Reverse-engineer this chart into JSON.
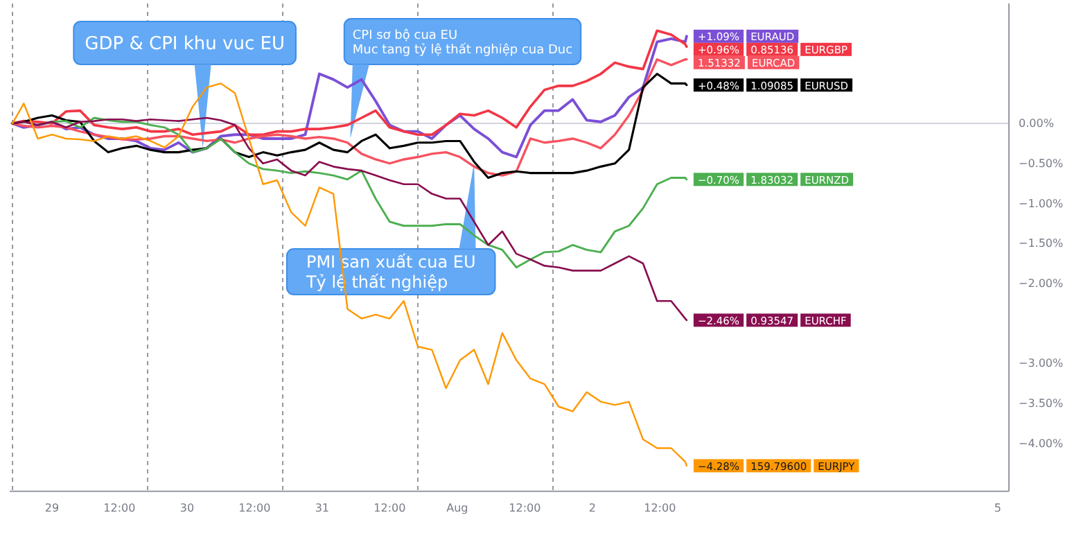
{
  "chart_data": {
    "type": "line",
    "x": [
      "--07-28T17:00",
      "--07-28T19:00",
      "--07-28T21:30",
      "--07-29T00:00",
      "--07-29T02:30",
      "--07-29T05:00",
      "--07-29T07:30",
      "--07-29T10:00",
      "--07-29T12:30",
      "--07-29T15:00",
      "--07-29T17:30",
      "--07-29T20:00",
      "--07-29T22:30",
      "--07-30T01:00",
      "--07-30T03:30",
      "--07-30T06:00",
      "--07-30T08:30",
      "--07-30T11:00",
      "--07-30T13:30",
      "--07-30T16:00",
      "--07-30T18:30",
      "--07-30T21:00",
      "--07-30T23:30",
      "--07-31T02:00",
      "--07-31T04:30",
      "--07-31T07:00",
      "--07-31T09:30",
      "--07-31T12:00",
      "--07-31T14:30",
      "--07-31T17:00",
      "--07-31T19:30",
      "--07-31T22:00",
      "--08-01T00:30",
      "--08-01T03:00",
      "--08-01T05:30",
      "--08-01T08:00",
      "--08-01T10:30",
      "--08-01T13:00",
      "--08-01T15:30",
      "--08-01T18:00",
      "--08-01T20:30",
      "--08-01T23:00",
      "--08-02T01:30",
      "--08-02T04:00",
      "--08-02T06:30",
      "--08-02T09:00",
      "--08-02T11:30",
      "--08-02T14:00",
      "--08-02T16:30",
      "--08-02T16:45"
    ],
    "xlim": [
      "--07-28T16:30",
      "--08-05T02:00"
    ],
    "xticks": [
      {
        "value": "--07-29",
        "label": "29"
      },
      {
        "value": "--07-29T12:00",
        "label": "12:00"
      },
      {
        "value": "--07-30",
        "label": "30"
      },
      {
        "value": "--07-30T12:00",
        "label": "12:00"
      },
      {
        "value": "--07-31",
        "label": "31"
      },
      {
        "value": "--07-31T12:00",
        "label": "12:00"
      },
      {
        "value": "--08-01",
        "label": "Aug"
      },
      {
        "value": "--08-01T12:00",
        "label": "12:00"
      },
      {
        "value": "--08-02",
        "label": "2"
      },
      {
        "value": "--08-02T12:00",
        "label": "12:00"
      },
      {
        "value": "--08-05",
        "label": "5"
      }
    ],
    "ylim": [
      -4.6,
      1.5
    ],
    "legend": "right",
    "yticks": [
      {
        "value": 0,
        "label": "0.00%"
      },
      {
        "value": -0.5,
        "label": "−0.50%"
      },
      {
        "value": -1,
        "label": "−1.00%"
      },
      {
        "value": -1.5,
        "label": "−1.50%"
      },
      {
        "value": -2,
        "label": "−2.00%"
      },
      {
        "value": -3,
        "label": "−3.00%"
      },
      {
        "value": -3.5,
        "label": "−3.50%"
      },
      {
        "value": -4,
        "label": "−4.00%"
      }
    ],
    "series": [
      {
        "name": "EURAUD",
        "color": "#7b4fd6",
        "values": [
          0,
          -0.05,
          -0.02,
          0.02,
          -0.07,
          -0.05,
          -0.14,
          -0.19,
          -0.19,
          -0.22,
          -0.31,
          -0.33,
          -0.24,
          -0.36,
          -0.31,
          -0.16,
          -0.14,
          -0.14,
          -0.19,
          -0.19,
          -0.19,
          -0.14,
          0.62,
          0.55,
          0.45,
          0.55,
          0.28,
          -0.02,
          -0.1,
          -0.1,
          -0.19,
          -0.02,
          0.1,
          -0.07,
          -0.19,
          -0.36,
          -0.42,
          -0.02,
          0.16,
          0.16,
          0.3,
          0.04,
          0.02,
          0.1,
          0.33,
          0.45,
          1.02,
          1.06,
          1.02,
          1.09
        ],
        "value_labels": [
          null,
          null,
          null,
          null,
          null,
          null,
          null,
          null,
          null,
          null,
          null,
          null,
          null,
          null,
          null,
          null,
          null,
          null,
          null,
          null,
          null,
          null,
          null,
          null,
          null,
          null,
          null,
          null,
          null,
          null,
          null,
          null,
          null,
          null,
          null,
          null,
          null,
          null,
          null,
          null,
          null,
          null,
          null,
          null,
          null,
          null,
          null,
          null,
          null,
          "+1.09%"
        ]
      },
      {
        "name": "EURGBP",
        "color": "#f23645",
        "values": [
          0,
          0.03,
          0.02,
          0,
          0.15,
          0.16,
          -0.02,
          -0.05,
          -0.07,
          -0.05,
          -0.1,
          -0.1,
          -0.07,
          -0.14,
          -0.12,
          -0.1,
          -0.02,
          -0.14,
          -0.14,
          -0.1,
          -0.1,
          -0.07,
          -0.07,
          -0.05,
          -0.02,
          0.07,
          0.16,
          -0.05,
          -0.1,
          -0.14,
          -0.14,
          -0.02,
          0.12,
          0.1,
          0.16,
          0.07,
          -0.05,
          0.21,
          0.42,
          0.47,
          0.47,
          0.53,
          0.62,
          0.76,
          0.71,
          0.68,
          1.16,
          1.11,
          0.99,
          0.96
        ],
        "value_labels": [
          null,
          null,
          null,
          null,
          null,
          null,
          null,
          null,
          null,
          null,
          null,
          null,
          null,
          null,
          null,
          null,
          null,
          null,
          null,
          null,
          null,
          null,
          null,
          null,
          null,
          null,
          null,
          null,
          null,
          null,
          null,
          null,
          null,
          null,
          null,
          null,
          null,
          null,
          null,
          null,
          null,
          null,
          null,
          null,
          null,
          null,
          null,
          null,
          null,
          "+0.96%"
        ]
      },
      {
        "name": "EURCAD",
        "color": "#f7525f",
        "values": [
          0,
          -0.03,
          -0.05,
          -0.03,
          -0.05,
          -0.1,
          -0.14,
          -0.17,
          -0.2,
          -0.2,
          -0.19,
          -0.16,
          -0.16,
          -0.19,
          -0.22,
          -0.2,
          -0.24,
          -0.19,
          -0.16,
          -0.14,
          -0.16,
          -0.19,
          -0.17,
          -0.19,
          -0.24,
          -0.38,
          -0.45,
          -0.5,
          -0.45,
          -0.42,
          -0.38,
          -0.36,
          -0.42,
          -0.54,
          -0.62,
          -0.65,
          -0.6,
          -0.19,
          -0.24,
          -0.22,
          -0.19,
          -0.24,
          -0.31,
          -0.14,
          0.1,
          0.42,
          0.8,
          0.73,
          0.8,
          0.8
        ]
      },
      {
        "name": "EURUSD",
        "color": "#000000",
        "values": [
          0,
          0.02,
          0.07,
          0.1,
          0.04,
          0.02,
          -0.22,
          -0.36,
          -0.31,
          -0.28,
          -0.33,
          -0.36,
          -0.36,
          -0.33,
          -0.31,
          -0.19,
          -0.36,
          -0.42,
          -0.36,
          -0.4,
          -0.36,
          -0.33,
          -0.24,
          -0.33,
          -0.36,
          -0.22,
          -0.14,
          -0.31,
          -0.28,
          -0.24,
          -0.24,
          -0.22,
          -0.22,
          -0.48,
          -0.68,
          -0.62,
          -0.6,
          -0.62,
          -0.62,
          -0.62,
          -0.62,
          -0.59,
          -0.54,
          -0.5,
          -0.33,
          0.45,
          0.62,
          0.5,
          0.5,
          0.48
        ],
        "value_labels": [
          null,
          null,
          null,
          null,
          null,
          null,
          null,
          null,
          null,
          null,
          null,
          null,
          null,
          null,
          null,
          null,
          null,
          null,
          null,
          null,
          null,
          null,
          null,
          null,
          null,
          null,
          null,
          null,
          null,
          null,
          null,
          null,
          null,
          null,
          null,
          null,
          null,
          null,
          null,
          null,
          null,
          null,
          null,
          null,
          null,
          null,
          null,
          null,
          null,
          "+0.48%"
        ]
      },
      {
        "name": "EURNZD",
        "color": "#4caf50",
        "values": [
          null,
          null,
          -0.02,
          0.02,
          0.03,
          -0.05,
          0.07,
          0.04,
          0.02,
          0.02,
          -0.02,
          -0.05,
          -0.14,
          -0.36,
          -0.31,
          -0.19,
          -0.36,
          -0.5,
          -0.57,
          -0.59,
          -0.62,
          -0.6,
          -0.62,
          -0.65,
          -0.7,
          -0.59,
          -0.94,
          -1.23,
          -1.28,
          -1.28,
          -1.28,
          -1.26,
          -1.26,
          -1.4,
          -1.52,
          -1.58,
          -1.8,
          -1.7,
          -1.61,
          -1.6,
          -1.52,
          -1.58,
          -1.61,
          -1.35,
          -1.28,
          -1.06,
          -0.76,
          -0.68,
          -0.68,
          -0.7
        ],
        "value_labels": [
          null,
          null,
          null,
          null,
          null,
          null,
          null,
          null,
          null,
          null,
          null,
          null,
          null,
          null,
          null,
          null,
          null,
          null,
          null,
          null,
          null,
          null,
          null,
          null,
          null,
          null,
          null,
          null,
          null,
          null,
          null,
          null,
          null,
          null,
          null,
          null,
          null,
          null,
          null,
          null,
          null,
          null,
          null,
          null,
          null,
          null,
          null,
          null,
          null,
          "−0.70%"
        ]
      },
      {
        "name": "EURCHF",
        "color": "#880e4f",
        "values": [
          0,
          0.02,
          -0.02,
          0.02,
          -0.05,
          0.02,
          0.03,
          0.05,
          0.05,
          0.03,
          0.05,
          0.04,
          0.03,
          0.05,
          0.07,
          0.04,
          -0.02,
          -0.31,
          -0.5,
          -0.45,
          -0.59,
          -0.65,
          -0.48,
          -0.54,
          -0.57,
          -0.59,
          -0.65,
          -0.71,
          -0.76,
          -0.76,
          -0.88,
          -0.94,
          -0.94,
          -1.23,
          -1.52,
          -1.35,
          -1.63,
          -1.7,
          -1.78,
          -1.8,
          -1.84,
          -1.84,
          -1.84,
          -1.75,
          -1.66,
          -1.75,
          -2.22,
          -2.22,
          -2.44,
          -2.46
        ],
        "value_labels": [
          null,
          null,
          null,
          null,
          null,
          null,
          null,
          null,
          null,
          null,
          null,
          null,
          null,
          null,
          null,
          null,
          null,
          null,
          null,
          null,
          null,
          null,
          null,
          null,
          null,
          null,
          null,
          null,
          null,
          null,
          null,
          null,
          null,
          null,
          null,
          null,
          null,
          null,
          null,
          null,
          null,
          null,
          null,
          null,
          null,
          null,
          null,
          null,
          null,
          "−2.46%"
        ]
      },
      {
        "name": "EURJPY",
        "color": "#ff9800",
        "values": [
          0,
          0.25,
          -0.19,
          -0.14,
          -0.19,
          -0.2,
          -0.22,
          -0.16,
          -0.19,
          -0.16,
          -0.22,
          -0.3,
          -0.16,
          0.21,
          0.45,
          0.5,
          0.38,
          -0.19,
          -0.76,
          -0.71,
          -1.11,
          -1.28,
          -0.8,
          -0.88,
          -2.32,
          -2.44,
          -2.39,
          -2.44,
          -2.22,
          -2.79,
          -2.83,
          -3.31,
          -2.96,
          -2.83,
          -3.26,
          -2.62,
          -2.96,
          -3.19,
          -3.26,
          -3.54,
          -3.6,
          -3.36,
          -3.48,
          -3.52,
          -3.48,
          -3.95,
          -4.06,
          -4.06,
          -4.23,
          -4.28
        ],
        "value_labels": [
          null,
          null,
          null,
          null,
          null,
          null,
          null,
          null,
          null,
          null,
          null,
          null,
          null,
          null,
          null,
          null,
          null,
          null,
          null,
          null,
          null,
          null,
          null,
          null,
          null,
          null,
          null,
          null,
          null,
          null,
          null,
          null,
          null,
          null,
          null,
          null,
          null,
          null,
          null,
          null,
          null,
          null,
          null,
          null,
          null,
          null,
          null,
          null,
          null,
          "−4.28%"
        ]
      }
    ],
    "ref_lines": [
      {
        "axis": "y",
        "value": 0,
        "color": "#d1d4dc"
      },
      {
        "axis": "x",
        "value": "--07-28T17:00",
        "color": "#9598a1",
        "line_style": "dashed"
      },
      {
        "axis": "x",
        "value": "--07-29T17:00",
        "color": "#9598a1",
        "line_style": "dashed"
      },
      {
        "axis": "x",
        "value": "--07-30T17:00",
        "color": "#9598a1",
        "line_style": "dashed"
      },
      {
        "axis": "x",
        "value": "--07-31T17:00",
        "color": "#9598a1",
        "line_style": "dashed"
      },
      {
        "axis": "x",
        "value": "--08-01T17:00",
        "color": "#9598a1",
        "line_style": "dashed"
      }
    ],
    "annotations": [
      {
        "text": "GDP & CPI khu vuc EU",
        "x": "--07-30T02:48",
        "y": -0.31
      },
      {
        "text": "CPI sơ bộ cua EU\nMuc tang tỷ lệ thất nghiệp cua Duc",
        "x": "--07-31T05:00",
        "y": -0.19
      },
      {
        "text": "PMI san xuất cua EU\nTỷ lệ thất nghiệp",
        "x": "--08-01T03:00",
        "y": -0.49
      },
      "0.85136",
      "1.51332",
      "1.09085",
      "1.83032",
      "0.93547",
      "159.79600"
    ]
  }
}
